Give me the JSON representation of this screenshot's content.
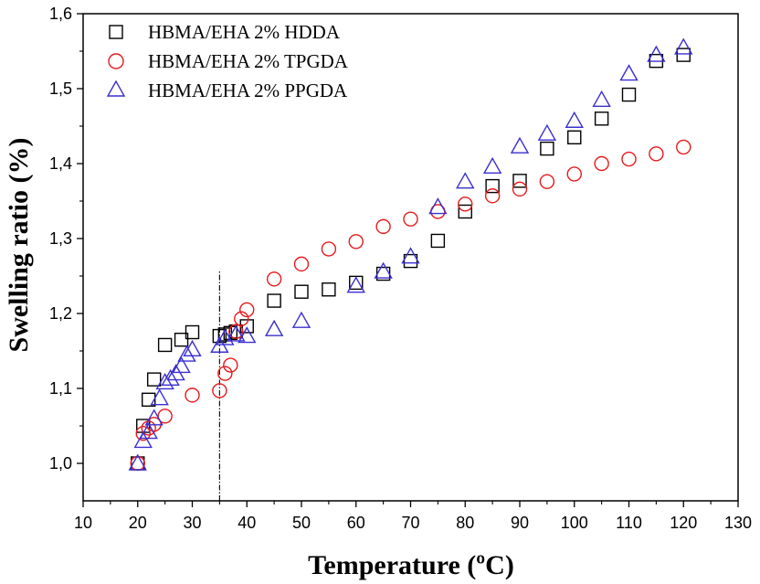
{
  "chart_data": {
    "type": "scatter",
    "title": "",
    "xlabel": "Temperature (ºC)",
    "ylabel": "Swelling ratio (%)",
    "xlim": [
      10,
      130
    ],
    "ylim": [
      0.95,
      1.6
    ],
    "x_ticks": [
      "10",
      "20",
      "30",
      "40",
      "50",
      "60",
      "70",
      "80",
      "90",
      "100",
      "110",
      "120",
      "130"
    ],
    "y_ticks": [
      "1,0",
      "1,1",
      "1,2",
      "1,3",
      "1,4",
      "1,5",
      "1,6"
    ],
    "legend_position": "top-left",
    "reference_line": {
      "x": 35,
      "y_from": 0.95,
      "y_to": 1.257,
      "style": "dash-dot"
    },
    "series": [
      {
        "name": "HBMA/EHA 2% HDDA",
        "marker": "square",
        "color": "#000000",
        "x": [
          20,
          21,
          22,
          23,
          25,
          28,
          30,
          35,
          36,
          37,
          38,
          40,
          45,
          50,
          55,
          60,
          65,
          70,
          75,
          80,
          85,
          90,
          95,
          100,
          105,
          110,
          115,
          120
        ],
        "y": [
          1.0,
          1.05,
          1.085,
          1.112,
          1.158,
          1.165,
          1.175,
          1.17,
          1.172,
          1.174,
          1.176,
          1.183,
          1.217,
          1.229,
          1.232,
          1.241,
          1.253,
          1.27,
          1.297,
          1.336,
          1.37,
          1.377,
          1.42,
          1.435,
          1.46,
          1.492,
          1.537,
          1.545
        ]
      },
      {
        "name": "HBMA/EHA 2% TPGDA",
        "marker": "circle",
        "color": "#e8191c",
        "x": [
          20,
          21,
          22,
          23,
          25,
          30,
          35,
          36,
          37,
          38,
          39,
          40,
          45,
          50,
          55,
          60,
          65,
          70,
          75,
          80,
          85,
          90,
          95,
          100,
          105,
          110,
          115,
          120
        ],
        "y": [
          1.0,
          1.04,
          1.047,
          1.052,
          1.063,
          1.091,
          1.097,
          1.12,
          1.131,
          1.176,
          1.193,
          1.205,
          1.246,
          1.266,
          1.286,
          1.296,
          1.316,
          1.326,
          1.336,
          1.346,
          1.357,
          1.366,
          1.376,
          1.386,
          1.4,
          1.406,
          1.413,
          1.422
        ]
      },
      {
        "name": "HBMA/EHA 2% PPGDA",
        "marker": "triangle",
        "color": "#3a2fd1",
        "x": [
          20,
          21,
          22,
          23,
          24,
          25,
          26,
          27,
          28,
          29,
          30,
          35,
          36,
          38,
          40,
          45,
          50,
          60,
          65,
          70,
          75,
          80,
          85,
          90,
          95,
          100,
          105,
          110,
          115,
          120
        ],
        "y": [
          1.0,
          1.03,
          1.042,
          1.06,
          1.087,
          1.108,
          1.113,
          1.12,
          1.13,
          1.145,
          1.152,
          1.157,
          1.167,
          1.172,
          1.17,
          1.179,
          1.19,
          1.237,
          1.256,
          1.276,
          1.342,
          1.376,
          1.396,
          1.423,
          1.44,
          1.457,
          1.485,
          1.52,
          1.545,
          1.555
        ]
      }
    ]
  }
}
